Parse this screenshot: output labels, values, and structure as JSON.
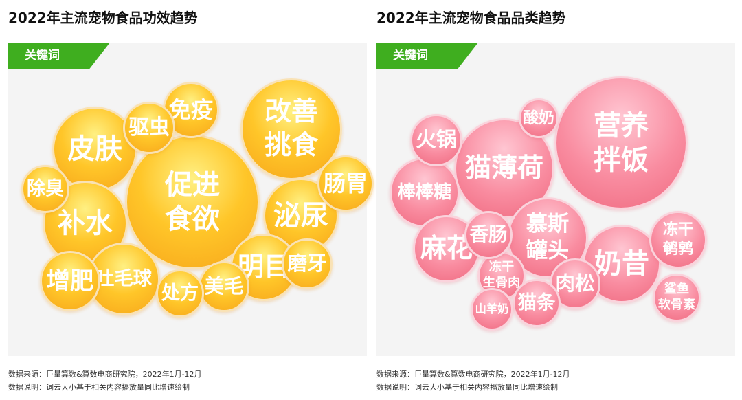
{
  "chart_data": [
    {
      "type": "bubble",
      "title": "2022年主流宠物食品功效趋势",
      "tag": "关键词",
      "bubbles": [
        {
          "label": "促进\n食欲",
          "value": 100
        },
        {
          "label": "改善\n挑食",
          "value": 48
        },
        {
          "label": "皮肤",
          "value": 30
        },
        {
          "label": "补水",
          "value": 30
        },
        {
          "label": "泌尿",
          "value": 21
        },
        {
          "label": "吐毛球",
          "value": 18
        },
        {
          "label": "明目",
          "value": 14
        },
        {
          "label": "增肥",
          "value": 10
        },
        {
          "label": "肠胃",
          "value": 8
        },
        {
          "label": "免疫",
          "value": 8
        },
        {
          "label": "驱虫",
          "value": 6
        },
        {
          "label": "磨牙",
          "value": 5
        },
        {
          "label": "美毛",
          "value": 5
        },
        {
          "label": "除臭",
          "value": 4
        },
        {
          "label": "处方",
          "value": 4
        }
      ],
      "source": "数据来源：巨量算数&算数电商研究院，2022年1月-12月",
      "note": "数据说明：词云大小基于相关内容播放量同比增速绘制"
    },
    {
      "type": "bubble",
      "title": "2022年主流宠物食品品类趋势",
      "tag": "关键词",
      "bubbles": [
        {
          "label": "营养\n拌饭",
          "value": 100
        },
        {
          "label": "猫薄荷",
          "value": 50
        },
        {
          "label": "慕斯\n罐头",
          "value": 29
        },
        {
          "label": "奶昔",
          "value": 26
        },
        {
          "label": "棒棒糖",
          "value": 19
        },
        {
          "label": "麻花",
          "value": 17
        },
        {
          "label": "冻干\n鹌鹑",
          "value": 11
        },
        {
          "label": "肉松",
          "value": 7
        },
        {
          "label": "火锅",
          "value": 8
        },
        {
          "label": "冻干\n生骨肉",
          "value": 6
        },
        {
          "label": "香肠",
          "value": 6
        },
        {
          "label": "猫条",
          "value": 6
        },
        {
          "label": "鲨鱼\n软骨素",
          "value": 6
        },
        {
          "label": "山羊奶",
          "value": 4
        },
        {
          "label": "酸奶",
          "value": 3
        }
      ],
      "source": "数据来源：巨量算数&算数电商研究院，2022年1月-12月",
      "note": "数据说明：词云大小基于相关内容播放量同比增速绘制"
    }
  ]
}
